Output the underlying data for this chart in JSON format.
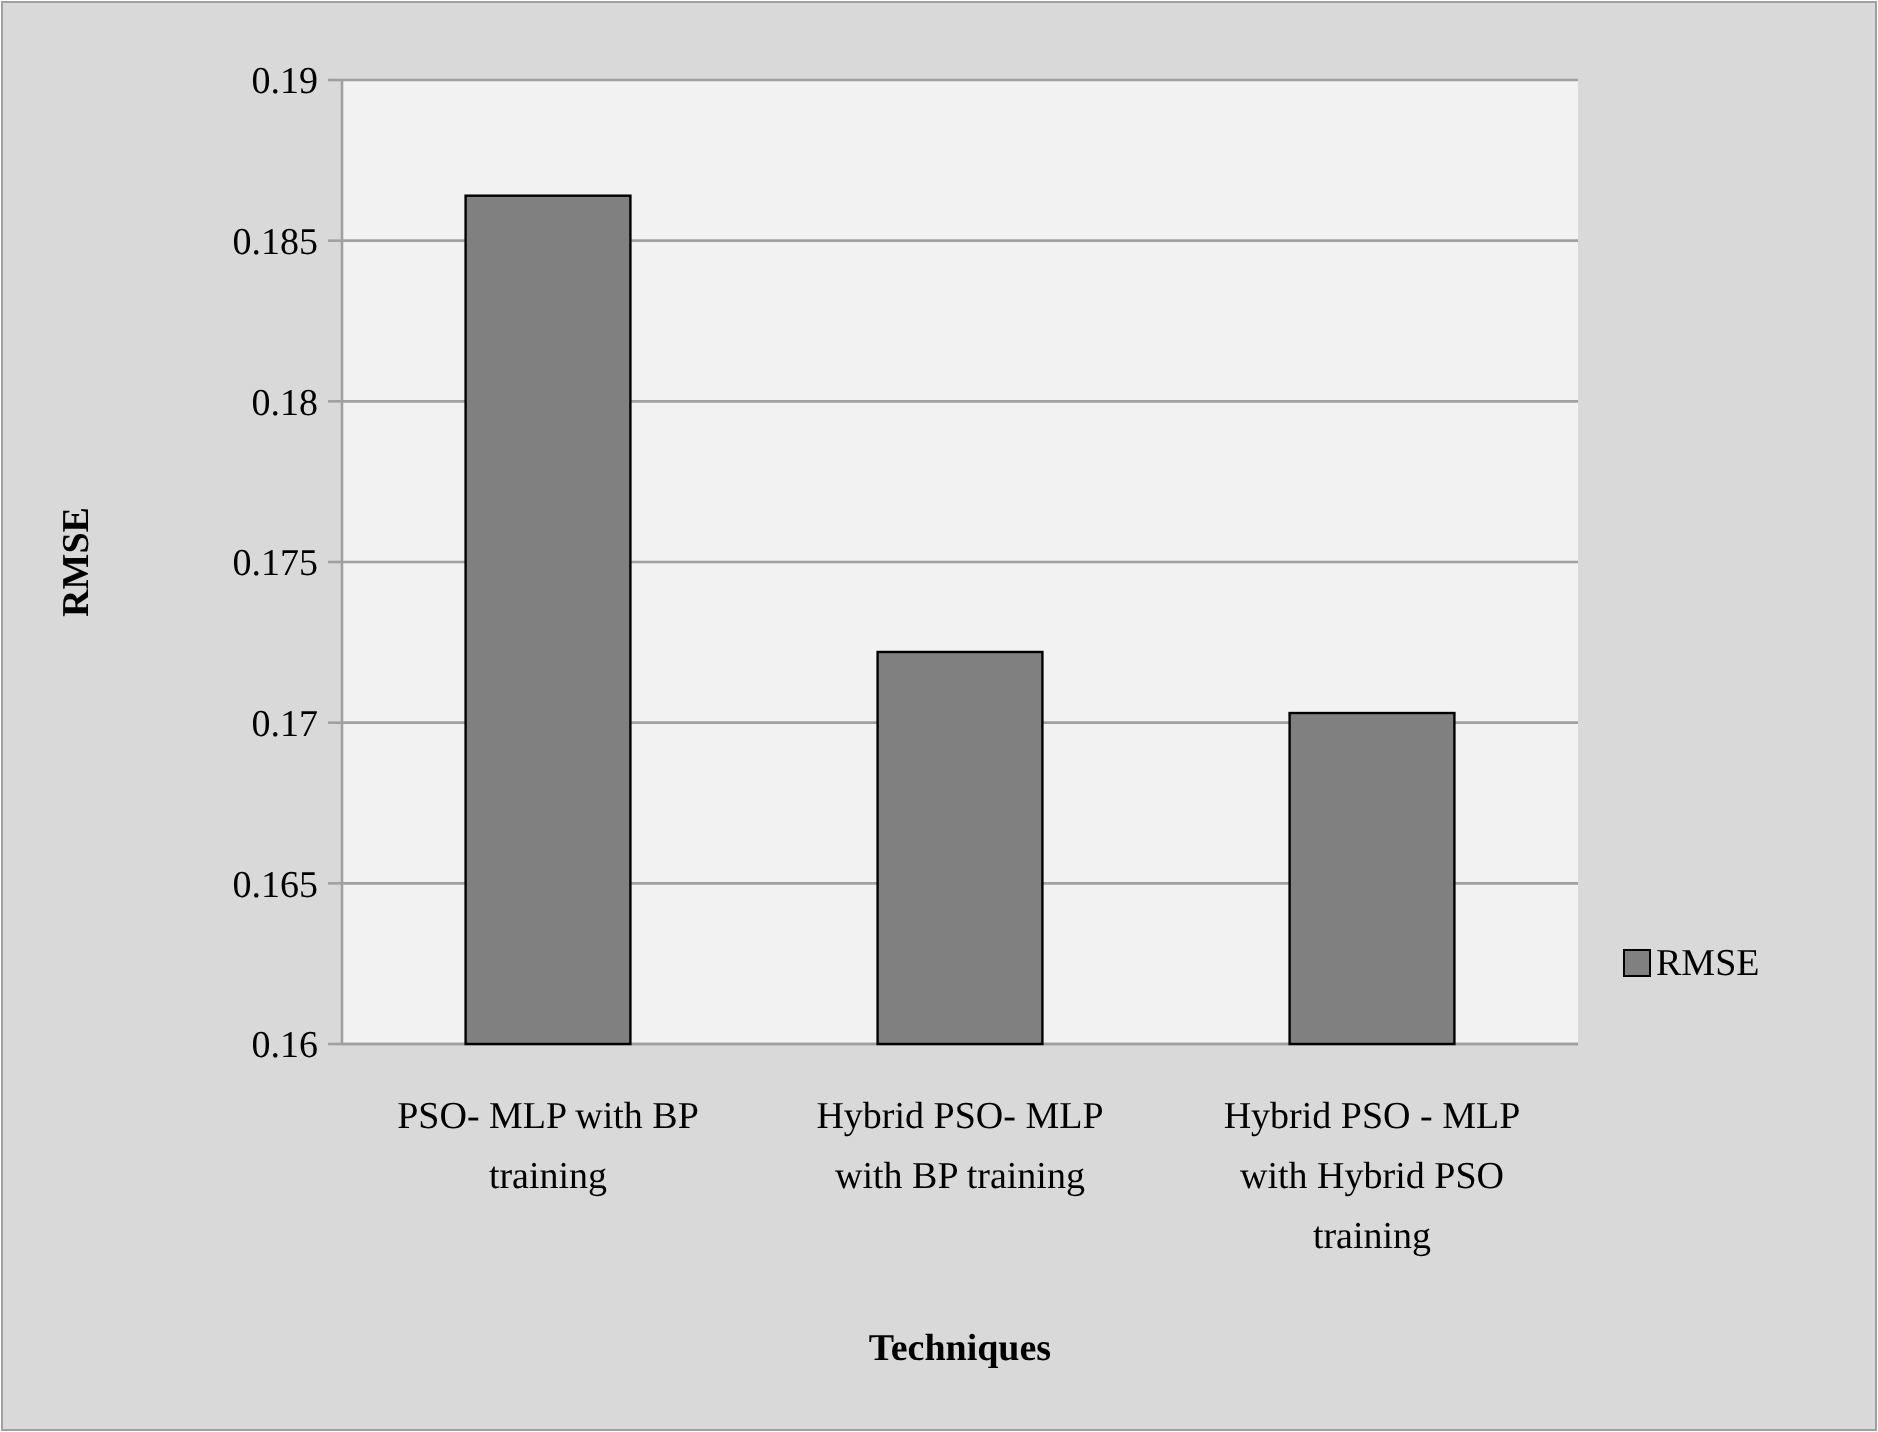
{
  "chart_data": {
    "type": "bar",
    "xlabel": "Techniques",
    "ylabel": "RMSE",
    "categories": [
      "PSO- MLP with BP training",
      "Hybrid PSO- MLP with BP training",
      "Hybrid PSO - MLP with Hybrid PSO training"
    ],
    "series": [
      {
        "name": "RMSE",
        "color": "#808080",
        "values": [
          0.1864,
          0.1722,
          0.1703
        ]
      }
    ],
    "ylim": [
      0.16,
      0.19
    ],
    "yticks": [
      0.16,
      0.165,
      0.17,
      0.175,
      0.18,
      0.185,
      0.19
    ],
    "grid": "y",
    "legend": "right"
  }
}
